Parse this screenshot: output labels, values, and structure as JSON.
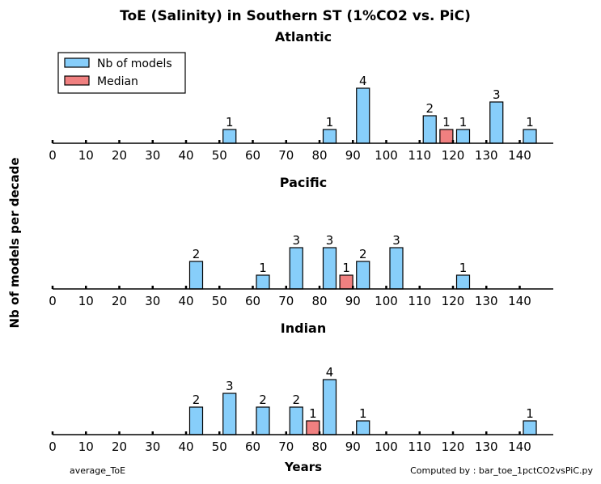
{
  "chart_data": {
    "type": "bar",
    "title": "ToE (Salinity) in Southern ST (1%CO2 vs. PiC)",
    "xlabel": "Years",
    "ylabel": "Nb of models per decade",
    "xlim": [
      0,
      150
    ],
    "ylim": [
      0,
      4
    ],
    "xticks": [
      0,
      10,
      20,
      30,
      40,
      50,
      60,
      70,
      80,
      90,
      100,
      110,
      120,
      130,
      140
    ],
    "legend": {
      "placement": "top-left",
      "entries": [
        {
          "name": "Nb of models",
          "color": "#87cefa"
        },
        {
          "name": "Median",
          "color": "#f08080"
        }
      ]
    },
    "panels": [
      {
        "name": "Atlantic",
        "series": [
          {
            "name": "Nb of models",
            "x": [
              50,
              80,
              90,
              110,
              120,
              130,
              140
            ],
            "values": [
              1,
              1,
              4,
              2,
              1,
              3,
              1
            ]
          },
          {
            "name": "Median",
            "x": [
              115
            ],
            "values": [
              1
            ]
          }
        ]
      },
      {
        "name": "Pacific",
        "series": [
          {
            "name": "Nb of models",
            "x": [
              40,
              60,
              70,
              80,
              90,
              100,
              120
            ],
            "values": [
              2,
              1,
              3,
              3,
              2,
              3,
              1
            ]
          },
          {
            "name": "Median",
            "x": [
              85
            ],
            "values": [
              1
            ]
          }
        ]
      },
      {
        "name": "Indian",
        "series": [
          {
            "name": "Nb of models",
            "x": [
              40,
              50,
              60,
              70,
              80,
              90,
              140
            ],
            "values": [
              2,
              3,
              2,
              2,
              4,
              1,
              1
            ]
          },
          {
            "name": "Median",
            "x": [
              75
            ],
            "values": [
              1
            ]
          }
        ]
      }
    ]
  },
  "footer": {
    "left": "average_ToE",
    "right": "Computed by : bar_toe_1pctCO2vsPiC.py"
  }
}
